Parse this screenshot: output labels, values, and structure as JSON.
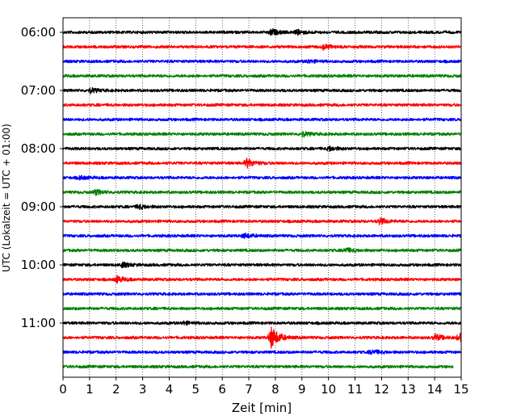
{
  "chart_data": {
    "type": "line",
    "chart_kind": "seismogram helicorder",
    "xlabel": "Zeit  [min]",
    "ylabel": "UTC (Lokalzeit = UTC + 01:00)",
    "xlim": [
      0,
      15
    ],
    "x_ticks": [
      "0",
      "1",
      "2",
      "3",
      "4",
      "5",
      "6",
      "7",
      "8",
      "9",
      "10",
      "11",
      "12",
      "13",
      "14",
      "15"
    ],
    "y_ticks": [
      "06:00",
      "07:00",
      "08:00",
      "09:00",
      "10:00",
      "11:00"
    ],
    "grid": "vertical dotted lines at each minute",
    "colors": [
      "#000000",
      "#ff0000",
      "#0000ff",
      "#008000"
    ],
    "traces": [
      {
        "start": "06:00",
        "color": "#000000",
        "end_min": 15,
        "events": [
          {
            "at_min": 7.8,
            "amp": 4
          },
          {
            "at_min": 8.8,
            "amp": 3
          }
        ]
      },
      {
        "start": "06:15",
        "color": "#ff0000",
        "end_min": 15,
        "events": [
          {
            "at_min": 9.8,
            "amp": 3
          }
        ]
      },
      {
        "start": "06:30",
        "color": "#0000ff",
        "end_min": 15,
        "events": [
          {
            "at_min": 9.2,
            "amp": 2
          }
        ]
      },
      {
        "start": "06:45",
        "color": "#008000",
        "end_min": 15,
        "events": []
      },
      {
        "start": "07:00",
        "color": "#000000",
        "end_min": 15,
        "events": [
          {
            "at_min": 1.0,
            "amp": 3
          }
        ]
      },
      {
        "start": "07:15",
        "color": "#ff0000",
        "end_min": 15,
        "events": []
      },
      {
        "start": "07:30",
        "color": "#0000ff",
        "end_min": 15,
        "events": []
      },
      {
        "start": "07:45",
        "color": "#008000",
        "end_min": 15,
        "events": [
          {
            "at_min": 9.0,
            "amp": 3
          }
        ]
      },
      {
        "start": "08:00",
        "color": "#000000",
        "end_min": 15,
        "events": [
          {
            "at_min": 10.0,
            "amp": 3
          }
        ]
      },
      {
        "start": "08:15",
        "color": "#ff0000",
        "end_min": 15,
        "events": [
          {
            "at_min": 6.9,
            "amp": 6
          }
        ]
      },
      {
        "start": "08:30",
        "color": "#0000ff",
        "end_min": 15,
        "events": [
          {
            "at_min": 0.6,
            "amp": 2
          }
        ]
      },
      {
        "start": "08:45",
        "color": "#008000",
        "end_min": 15,
        "events": [
          {
            "at_min": 1.2,
            "amp": 3
          }
        ]
      },
      {
        "start": "09:00",
        "color": "#000000",
        "end_min": 15,
        "events": [
          {
            "at_min": 2.8,
            "amp": 3
          }
        ]
      },
      {
        "start": "09:15",
        "color": "#ff0000",
        "end_min": 15,
        "events": [
          {
            "at_min": 11.9,
            "amp": 4
          }
        ]
      },
      {
        "start": "09:30",
        "color": "#0000ff",
        "end_min": 15,
        "events": [
          {
            "at_min": 6.8,
            "amp": 3
          }
        ]
      },
      {
        "start": "09:45",
        "color": "#008000",
        "end_min": 15,
        "events": [
          {
            "at_min": 10.6,
            "amp": 3
          }
        ]
      },
      {
        "start": "10:00",
        "color": "#000000",
        "end_min": 15,
        "events": [
          {
            "at_min": 2.2,
            "amp": 3
          }
        ]
      },
      {
        "start": "10:15",
        "color": "#ff0000",
        "end_min": 15,
        "events": [
          {
            "at_min": 2.0,
            "amp": 4
          }
        ]
      },
      {
        "start": "10:30",
        "color": "#0000ff",
        "end_min": 15,
        "events": []
      },
      {
        "start": "10:45",
        "color": "#008000",
        "end_min": 15,
        "events": []
      },
      {
        "start": "11:00",
        "color": "#000000",
        "end_min": 15,
        "events": [
          {
            "at_min": 4.5,
            "amp": 2
          }
        ]
      },
      {
        "start": "11:15",
        "color": "#ff0000",
        "end_min": 15,
        "events": [
          {
            "at_min": 7.8,
            "amp": 16
          },
          {
            "at_min": 14.0,
            "amp": 4
          },
          {
            "at_min": 14.9,
            "amp": 5
          }
        ]
      },
      {
        "start": "11:30",
        "color": "#0000ff",
        "end_min": 15,
        "events": [
          {
            "at_min": 11.6,
            "amp": 3
          }
        ]
      },
      {
        "start": "11:45",
        "color": "#008000",
        "end_min": 14.7,
        "events": []
      }
    ]
  }
}
